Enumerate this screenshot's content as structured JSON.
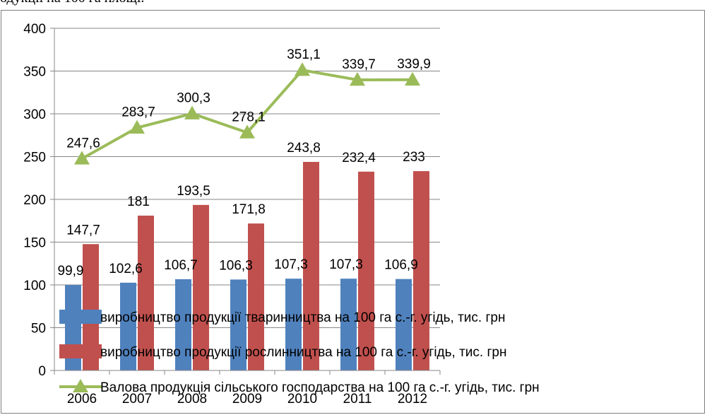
{
  "caption": "одукції на 100 га площі.",
  "colors": {
    "bar1": "#4f81bd",
    "bar2": "#c0504d",
    "line": "#9bbb59",
    "grid": "#878787",
    "axis": "#878787"
  },
  "chart_data": {
    "type": "bar",
    "categories": [
      "2006",
      "2007",
      "2008",
      "2009",
      "2010",
      "2011",
      "2012"
    ],
    "ylim": [
      0,
      400
    ],
    "yticks": [
      "0",
      "50",
      "100",
      "150",
      "200",
      "250",
      "300",
      "350",
      "400"
    ],
    "grid": true,
    "legend_position": "bottom-overlay",
    "series": [
      {
        "name": "виробництво продукції тваринництва на 100 га с.-г. угідь, тис. грн",
        "kind": "bar",
        "color": "#4f81bd",
        "values": [
          99.9,
          102.6,
          106.7,
          106.3,
          107.3,
          107.3,
          106.9
        ],
        "labels": [
          "99,9",
          "102,6",
          "106,7",
          "106,3",
          "107,3",
          "107,3",
          "106,9"
        ]
      },
      {
        "name": "виробництво продукції рослинництва на 100 га с.-г. угідь, тис. грн",
        "kind": "bar",
        "color": "#c0504d",
        "values": [
          147.7,
          181,
          193.5,
          171.8,
          243.8,
          232.4,
          233
        ],
        "labels": [
          "147,7",
          "181",
          "193,5",
          "171,8",
          "243,8",
          "232,4",
          "233"
        ]
      },
      {
        "name": "Валова продукція сільського господарства на 100 га с.-г. угідь, тис. грн",
        "kind": "line",
        "marker": "triangle",
        "color": "#9bbb59",
        "values": [
          247.6,
          283.7,
          300.3,
          278.1,
          351.1,
          339.7,
          339.9
        ],
        "labels": [
          "247,6",
          "283,7",
          "300,3",
          "278,1",
          "351,1",
          "339,7",
          "339,9"
        ]
      }
    ]
  }
}
